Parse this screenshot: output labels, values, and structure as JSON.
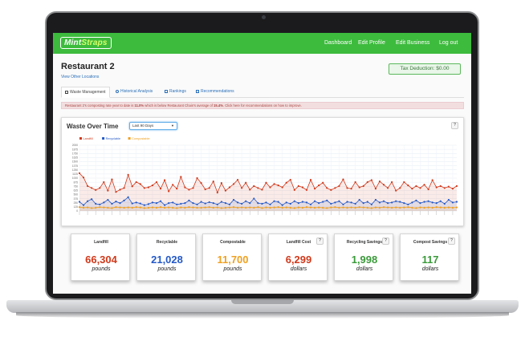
{
  "nav": {
    "brand_part1": "Mint",
    "brand_part2": "Straps",
    "links": [
      "Dashboard",
      "Edit Profile",
      "Edit Business",
      "Log out"
    ]
  },
  "header": {
    "title": "Restaurant 2",
    "view_locations": "View Other Locations",
    "tax_deduction": "Tax Deduction: $0.00"
  },
  "tabs": [
    "Waste Management",
    "Historical Analysis",
    "Rankings",
    "Recommendations"
  ],
  "alert": {
    "text_before": "Restaurant 2's composting rate year to date is ",
    "rate": "11.0%",
    "text_middle": " which is below Restaurant Chain's average of ",
    "average": "15.4%",
    "text_after": ". Click here for recommendations on how to improve."
  },
  "chart_section": {
    "title": "Waste Over Time",
    "range_selected": "Last 90 Days",
    "help": "?"
  },
  "chart_data": {
    "type": "line",
    "series": [
      {
        "name": "Landfill",
        "color": "#d0391b",
        "values": [
          1150,
          1020,
          760,
          700,
          640,
          700,
          880,
          620,
          960,
          580,
          650,
          700,
          1100,
          750,
          880,
          820,
          700,
          720,
          780,
          880,
          680,
          940,
          600,
          800,
          680,
          1040,
          720,
          650,
          700,
          1000,
          850,
          660,
          700,
          900,
          560,
          850,
          620,
          720,
          820,
          950,
          700,
          860,
          650,
          760,
          700,
          650,
          860,
          720,
          820,
          780,
          720,
          860,
          950,
          640,
          760,
          720,
          640,
          950,
          680,
          780,
          860,
          700,
          640,
          700,
          760,
          960,
          700,
          680,
          880,
          720,
          760,
          880,
          940,
          680,
          900,
          800,
          700,
          880,
          620,
          700,
          880,
          780,
          680,
          760,
          700,
          800,
          660,
          940,
          720,
          760,
          700,
          740,
          680,
          760
        ]
      },
      {
        "name": "Recyclable",
        "color": "#2459c7",
        "values": [
          280,
          180,
          300,
          360,
          220,
          200,
          260,
          340,
          220,
          290,
          240,
          320,
          420,
          230,
          260,
          230,
          180,
          210,
          260,
          240,
          300,
          180,
          240,
          260,
          200,
          220,
          240,
          320,
          240,
          200,
          280,
          230,
          270,
          240,
          200,
          280,
          240,
          200,
          340,
          260,
          220,
          300,
          240,
          380,
          240,
          220,
          260,
          200,
          300,
          280,
          180,
          260,
          220,
          300,
          240,
          280,
          260,
          200,
          300,
          240,
          280,
          320,
          220,
          260,
          300,
          200,
          280,
          260,
          220,
          340,
          240,
          280,
          200,
          340,
          260,
          300,
          240,
          260,
          300,
          280,
          240,
          200,
          260,
          320,
          240,
          280,
          300,
          260,
          240,
          300,
          220,
          340,
          260,
          280
        ]
      },
      {
        "name": "Compostable",
        "color": "#f0a020",
        "values": [
          120,
          100,
          110,
          90,
          100,
          120,
          110,
          100,
          90,
          120,
          110,
          100,
          110,
          100,
          120,
          110,
          90,
          100,
          110,
          100,
          120,
          100,
          110,
          100,
          90,
          110,
          100,
          120,
          110,
          100,
          100,
          110,
          120,
          100,
          110,
          90,
          100,
          110,
          120,
          100,
          110,
          100,
          110,
          100,
          120,
          90,
          110,
          100,
          110,
          120,
          100,
          110,
          100,
          90,
          110,
          100,
          120,
          110,
          100,
          110,
          100,
          90,
          110,
          120,
          100,
          110,
          100,
          110,
          100,
          120,
          110,
          100,
          90,
          110,
          100,
          120,
          110,
          100,
          110,
          100,
          110,
          120,
          100,
          90,
          110,
          100,
          110,
          100,
          120,
          110,
          100,
          110,
          100,
          110
        ]
      }
    ],
    "y_ticks": [
      "2000",
      "1875",
      "1750",
      "1625",
      "1500",
      "1375",
      "1250",
      "1125",
      "1000",
      "875",
      "750",
      "625",
      "500",
      "375",
      "250",
      "125",
      "0"
    ],
    "ylim": [
      0,
      2000
    ],
    "legend_position": "top-left",
    "grid": true
  },
  "cards": [
    {
      "label": "Landfill",
      "value": "66,304",
      "unit": "pounds",
      "color": "#d0391b",
      "help": false
    },
    {
      "label": "Recyclable",
      "value": "21,028",
      "unit": "pounds",
      "color": "#2459c7",
      "help": false
    },
    {
      "label": "Compostable",
      "value": "11,700",
      "unit": "pounds",
      "color": "#f0a020",
      "help": false
    },
    {
      "label": "Landfill Cost",
      "value": "6,299",
      "unit": "dollars",
      "color": "#d0391b",
      "help": true
    },
    {
      "label": "Recycling Savings",
      "value": "1,998",
      "unit": "dollars",
      "color": "#3a9a3a",
      "help": true
    },
    {
      "label": "Compost Savings",
      "value": "117",
      "unit": "dollars",
      "color": "#3a9a3a",
      "help": true
    }
  ],
  "help_label": "?"
}
